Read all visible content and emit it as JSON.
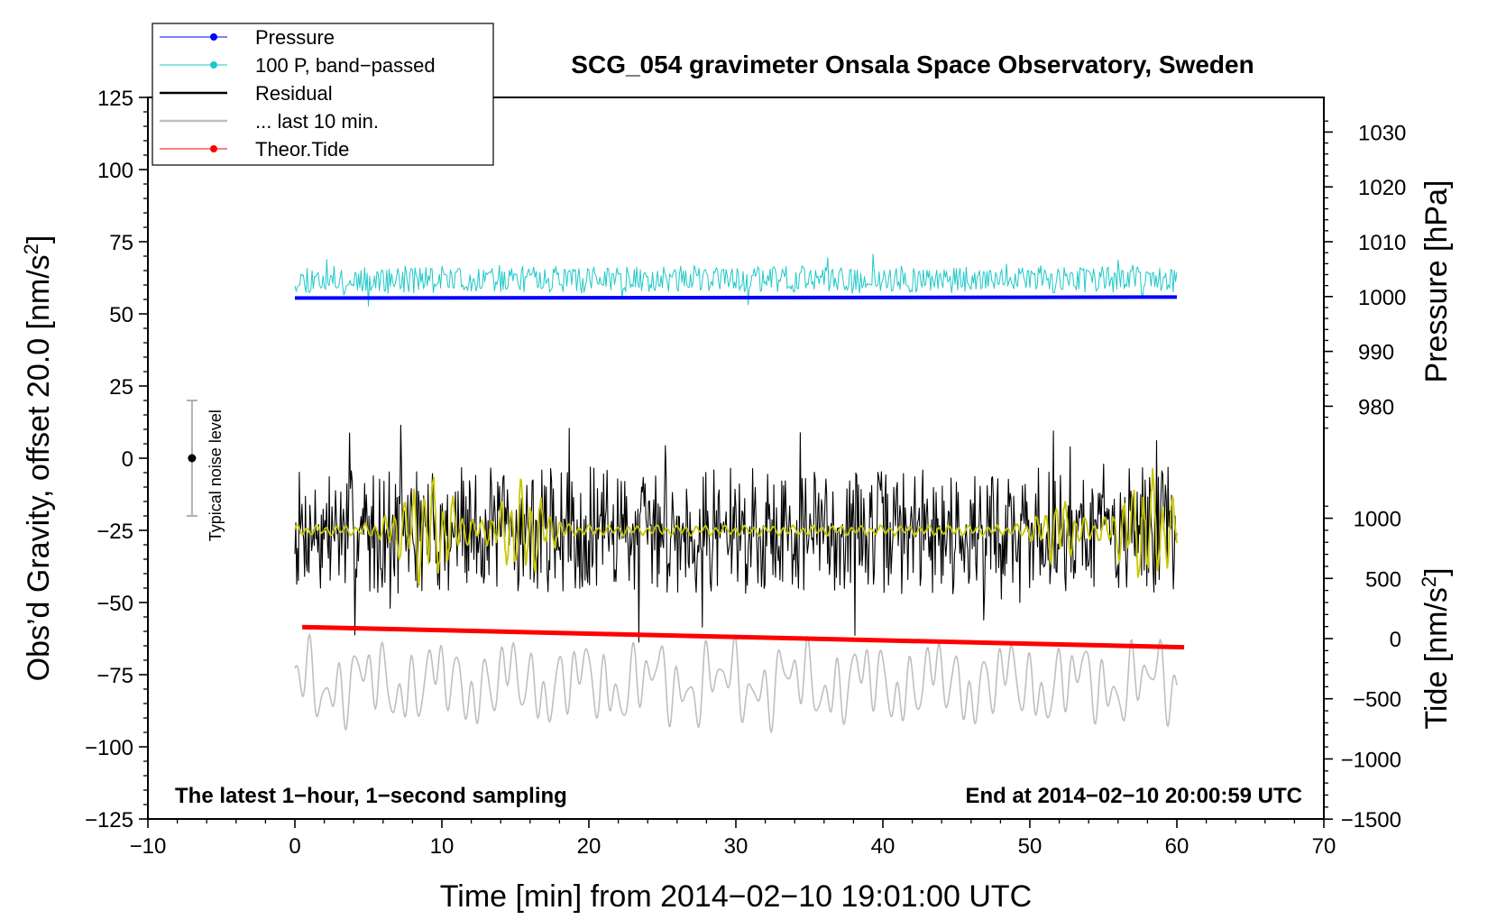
{
  "chart_data": {
    "type": "line",
    "title": "SCG_054 gravimeter Onsala Space Observatory, Sweden",
    "xlabel": "Time [min] from 2014−02−10 19:01:00 UTC",
    "ylabel": "Obs’d Gravity, offset 20.0 [nm/s",
    "ylabel_sup": "2",
    "ylabel_end": "]",
    "right_top_label": "Pressure [hPa]",
    "right_bottom_label": "Tide [nm/s",
    "right_bottom_label_sup": "2",
    "right_bottom_label_end": "]",
    "xlim": [
      -10,
      70
    ],
    "ylim": [
      -125,
      125
    ],
    "x_ticks": [
      -10,
      0,
      10,
      20,
      30,
      40,
      50,
      60,
      70
    ],
    "x_tick_labels": [
      "−10",
      "0",
      "10",
      "20",
      "30",
      "40",
      "50",
      "60",
      "70"
    ],
    "y_ticks": [
      125,
      100,
      75,
      50,
      25,
      0,
      -25,
      -50,
      -75,
      -100,
      -125
    ],
    "y_tick_labels": [
      "125",
      "100",
      "75",
      "50",
      "25",
      "0",
      "−25",
      "−50",
      "−75",
      "−100",
      "−125"
    ],
    "pressure_axis": {
      "ticks": [
        1030,
        1020,
        1010,
        1000,
        990,
        980
      ],
      "tick_labels": [
        "1030",
        "1020",
        "1010",
        "1000",
        "990",
        "980"
      ],
      "gravity_at_1000": 56,
      "gravity_per_hpa": 1.9
    },
    "tide_axis": {
      "ticks": [
        1000,
        500,
        0,
        -500,
        -1000,
        -1500
      ],
      "tick_labels": [
        "1000",
        "500",
        "0",
        "−500",
        "−1000",
        "−1500"
      ],
      "gravity_at_0": -62.5,
      "gravity_per_unit": 0.0417
    },
    "series": [
      {
        "name": "Pressure",
        "color": "#0000ff",
        "kind": "flat",
        "x_start": 0,
        "x_end": 60,
        "y_start": 55.5,
        "y_end": 55.8
      },
      {
        "name": "100 P, band−passed",
        "color": "#20c8c8",
        "kind": "noise",
        "x_start": 0,
        "x_end": 60,
        "center": 62,
        "amplitude": 5,
        "seed": 11
      },
      {
        "name": "Residual",
        "color": "#000000",
        "kind": "noise",
        "x_start": 0,
        "x_end": 60,
        "center": -25,
        "amplitude": 22,
        "seed": 7
      },
      {
        "name": "Residual smoothed",
        "color": "#c8c800",
        "kind": "smooth",
        "x_start": 0,
        "x_end": 60,
        "center": -25,
        "amplitude": 5,
        "seed": 3
      },
      {
        "name": "... last 10 min.",
        "color": "#bfbfbf",
        "kind": "wave",
        "x_start": 0,
        "x_end": 60,
        "center": -78,
        "amplitude": 14,
        "seed": 5
      },
      {
        "name": "Theor.Tide",
        "color": "#ff0000",
        "kind": "flat",
        "x_start": 0.5,
        "x_end": 60.5,
        "y_start": -58.5,
        "y_end": -65.5
      }
    ],
    "legend": {
      "position": "top-left",
      "entries": [
        {
          "label": "Pressure",
          "color": "#0000ff",
          "marker": true
        },
        {
          "label": "100 P, band−passed",
          "color": "#20c8c8",
          "marker": true
        },
        {
          "label": "Residual",
          "color": "#000000",
          "marker": false
        },
        {
          "label": "... last 10 min.",
          "color": "#bfbfbf",
          "marker": false
        },
        {
          "label": "Theor.Tide",
          "color": "#ff0000",
          "marker": true
        }
      ]
    },
    "noise_indicator": {
      "label": "Typical noise level",
      "x": -7,
      "center": 0,
      "low": -20,
      "high": 20
    },
    "annotations": {
      "bottom_left": "The latest 1−hour, 1−second sampling",
      "bottom_right": "End at 2014−02−10 20:00:59 UTC"
    }
  }
}
